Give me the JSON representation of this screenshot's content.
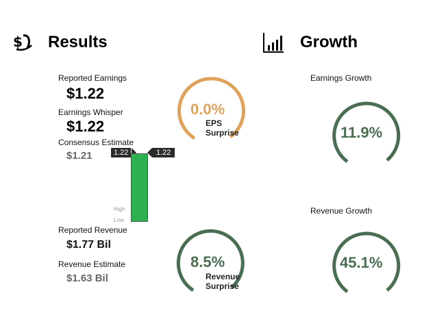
{
  "results": {
    "title": "Results",
    "icon": "money-hand-icon",
    "reported_earnings_label": "Reported Earnings",
    "reported_earnings_value": "$1.22",
    "earnings_whisper_label": "Earnings Whisper",
    "earnings_whisper_value": "$1.22",
    "consensus_estimate_label": "Consensus Estimate",
    "consensus_estimate_value": "$1.21",
    "reported_revenue_label": "Reported Revenue",
    "reported_revenue_value": "$1.77 Bil",
    "revenue_estimate_label": "Revenue Estimate",
    "revenue_estimate_value": "$1.63 Bil",
    "range_bar": {
      "left_tag": "1.22",
      "right_tag": "1.22",
      "high_label": "High",
      "low_label": "Low",
      "color": "#2db050"
    },
    "eps_gauge": {
      "value": "0.0%",
      "label_line1": "EPS",
      "label_line2": "Surprise",
      "color": "#e0a35c"
    },
    "revenue_gauge": {
      "value": "8.5%",
      "label_line1": "Revenue",
      "label_line2": "Surprise",
      "color": "#4a6e52"
    }
  },
  "growth": {
    "title": "Growth",
    "icon": "bar-chart-icon",
    "earnings_growth_label": "Earnings Growth",
    "earnings_growth_value": "11.9%",
    "revenue_growth_label": "Revenue Growth",
    "revenue_growth_value": "45.1%",
    "color": "#4a6e52"
  }
}
